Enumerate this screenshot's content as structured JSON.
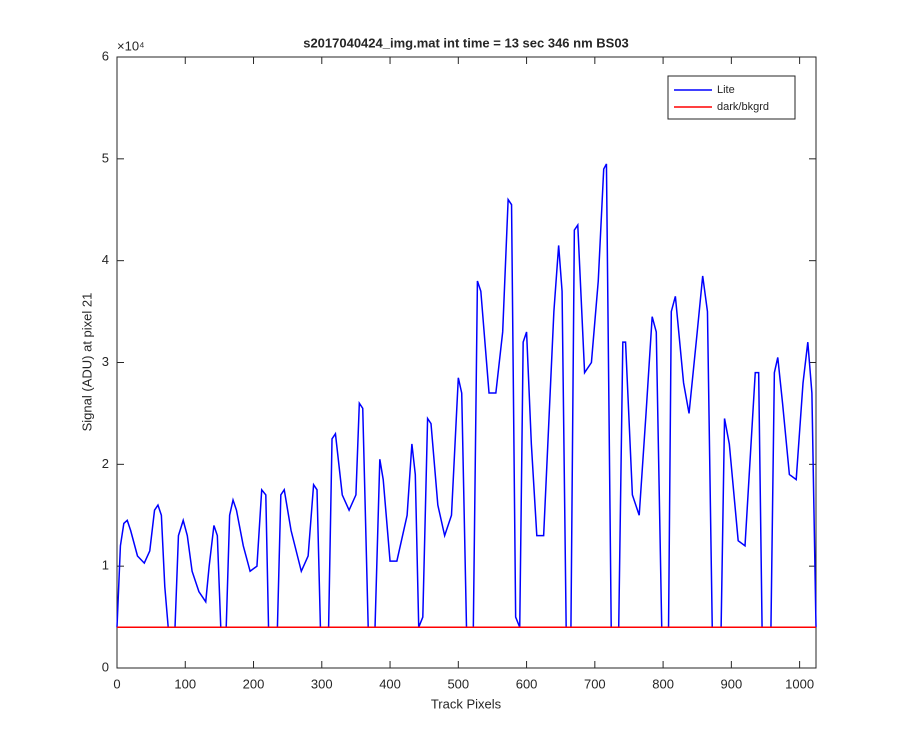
{
  "chart_data": {
    "type": "line",
    "title": "s2017040424_img.mat int time = 13 sec  346 nm BS03",
    "x_label": "Track Pixels",
    "y_label": "Signal (ADU) at pixel 21",
    "y_axis_multiplier": "×10⁴",
    "xlim": [
      0,
      1024
    ],
    "ylim": [
      0,
      60000
    ],
    "xticks": [
      0,
      100,
      200,
      300,
      400,
      500,
      600,
      700,
      800,
      900,
      1000
    ],
    "yticks": [
      0,
      {
        "value": 10000,
        "label": "1"
      },
      {
        "value": 20000,
        "label": "2"
      },
      {
        "value": 30000,
        "label": "3"
      },
      {
        "value": 40000,
        "label": "4"
      },
      {
        "value": 50000,
        "label": "5"
      },
      {
        "value": 60000,
        "label": "6"
      }
    ],
    "legend_position": "upper right",
    "series": [
      {
        "name": "Lite",
        "color": "#0000ff",
        "x": [
          0,
          5,
          10,
          15,
          20,
          30,
          40,
          48,
          55,
          60,
          65,
          70,
          75,
          85,
          90,
          97,
          103,
          110,
          120,
          130,
          135,
          142,
          147,
          152,
          160,
          165,
          170,
          175,
          185,
          195,
          205,
          212,
          218,
          222,
          235,
          240,
          245,
          255,
          270,
          280,
          288,
          293,
          298,
          310,
          315,
          320,
          330,
          340,
          350,
          355,
          360,
          368,
          378,
          385,
          390,
          400,
          410,
          425,
          432,
          437,
          442,
          448,
          455,
          460,
          470,
          480,
          490,
          500,
          505,
          512,
          522,
          528,
          533,
          545,
          555,
          565,
          573,
          578,
          584,
          590,
          595,
          600,
          607,
          615,
          625,
          640,
          647,
          652,
          658,
          665,
          670,
          675,
          685,
          695,
          705,
          713,
          717,
          724,
          735,
          741,
          745,
          755,
          765,
          775,
          784,
          790,
          798,
          808,
          812,
          818,
          830,
          838,
          850,
          858,
          865,
          872,
          885,
          890,
          897,
          910,
          920,
          935,
          940,
          945,
          958,
          963,
          968,
          975,
          985,
          995,
          1005,
          1012,
          1018,
          1024
        ],
        "values": [
          4000,
          12000,
          14200,
          14500,
          13500,
          11000,
          10300,
          11500,
          15500,
          16000,
          15000,
          8000,
          4000,
          4000,
          13000,
          14500,
          13000,
          9500,
          7500,
          6500,
          10000,
          14000,
          13000,
          4000,
          4000,
          15000,
          16500,
          15500,
          12000,
          9500,
          10000,
          17500,
          17000,
          4000,
          4000,
          17000,
          17500,
          13500,
          9500,
          11000,
          18000,
          17500,
          4000,
          4000,
          22500,
          23000,
          17000,
          15500,
          17000,
          26000,
          25500,
          4000,
          4000,
          20500,
          18500,
          10500,
          10500,
          15000,
          22000,
          19000,
          4000,
          5000,
          24500,
          24000,
          16000,
          13000,
          15000,
          28500,
          27000,
          4000,
          4000,
          38000,
          37000,
          27000,
          27000,
          33000,
          46000,
          45500,
          5000,
          4000,
          32000,
          33000,
          22000,
          13000,
          13000,
          35000,
          41500,
          37000,
          4000,
          4000,
          43000,
          43500,
          29000,
          30000,
          38000,
          49000,
          49500,
          4000,
          4000,
          32000,
          32000,
          17000,
          15000,
          25000,
          34500,
          33000,
          4000,
          4000,
          35000,
          36500,
          28000,
          25000,
          33000,
          38500,
          35000,
          4000,
          4000,
          24500,
          22000,
          12500,
          12000,
          29000,
          29000,
          4000,
          4000,
          29000,
          30500,
          26000,
          19000,
          18500,
          28000,
          32000,
          27000,
          4000
        ]
      },
      {
        "name": "dark/bkgrd",
        "color": "#ff0000",
        "x": [
          0,
          1024
        ],
        "values": [
          4000,
          4000
        ]
      }
    ]
  }
}
